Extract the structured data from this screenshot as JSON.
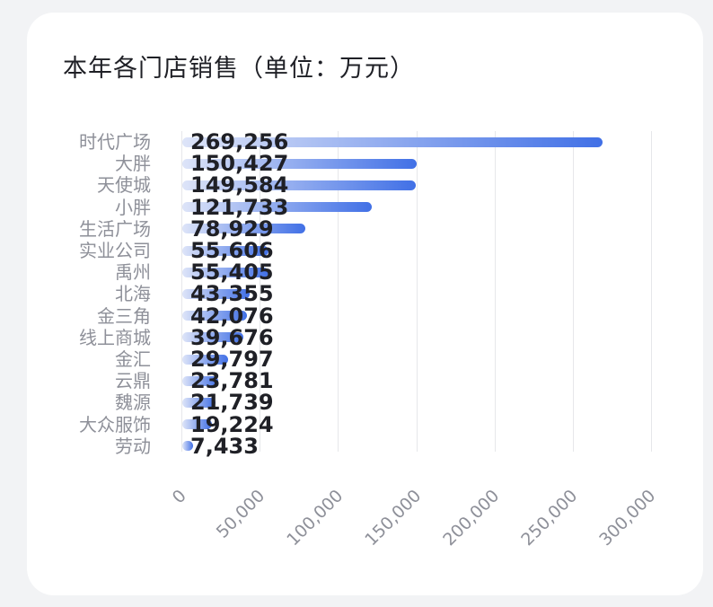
{
  "colors": {
    "background": "#f2f3f5",
    "card": "#ffffff",
    "bar_start": "#dde4f8",
    "bar_end": "#4170e6",
    "grid": "#e6e7ea",
    "label": "#8e9099",
    "value": "#1f2026"
  },
  "chart_data": {
    "type": "bar",
    "orientation": "horizontal",
    "title": "本年各门店销售（单位：万元）",
    "xlabel": "",
    "ylabel": "",
    "categories": [
      "时代广场",
      "大胖",
      "天使城",
      "小胖",
      "生活广场",
      "实业公司",
      "禹州",
      "北海",
      "金三角",
      "线上商城",
      "金汇",
      "云鼎",
      "魏源",
      "大众服饰",
      "劳动"
    ],
    "values": [
      269256,
      150427,
      149584,
      121733,
      78929,
      55606,
      55405,
      43355,
      42076,
      39676,
      29797,
      23781,
      21739,
      19224,
      7433
    ],
    "value_labels": [
      "269,256",
      "150,427",
      "149,584",
      "121,733",
      "78,929",
      "55,606",
      "55,405",
      "43,355",
      "42,076",
      "39,676",
      "29,797",
      "23,781",
      "21,739",
      "19,224",
      "7,433"
    ],
    "xlim": [
      0,
      300000
    ],
    "x_ticks": [
      "0",
      "50,000",
      "100,000",
      "150,000",
      "200,000",
      "250,000",
      "300,000"
    ],
    "grid": true,
    "legend": null
  }
}
